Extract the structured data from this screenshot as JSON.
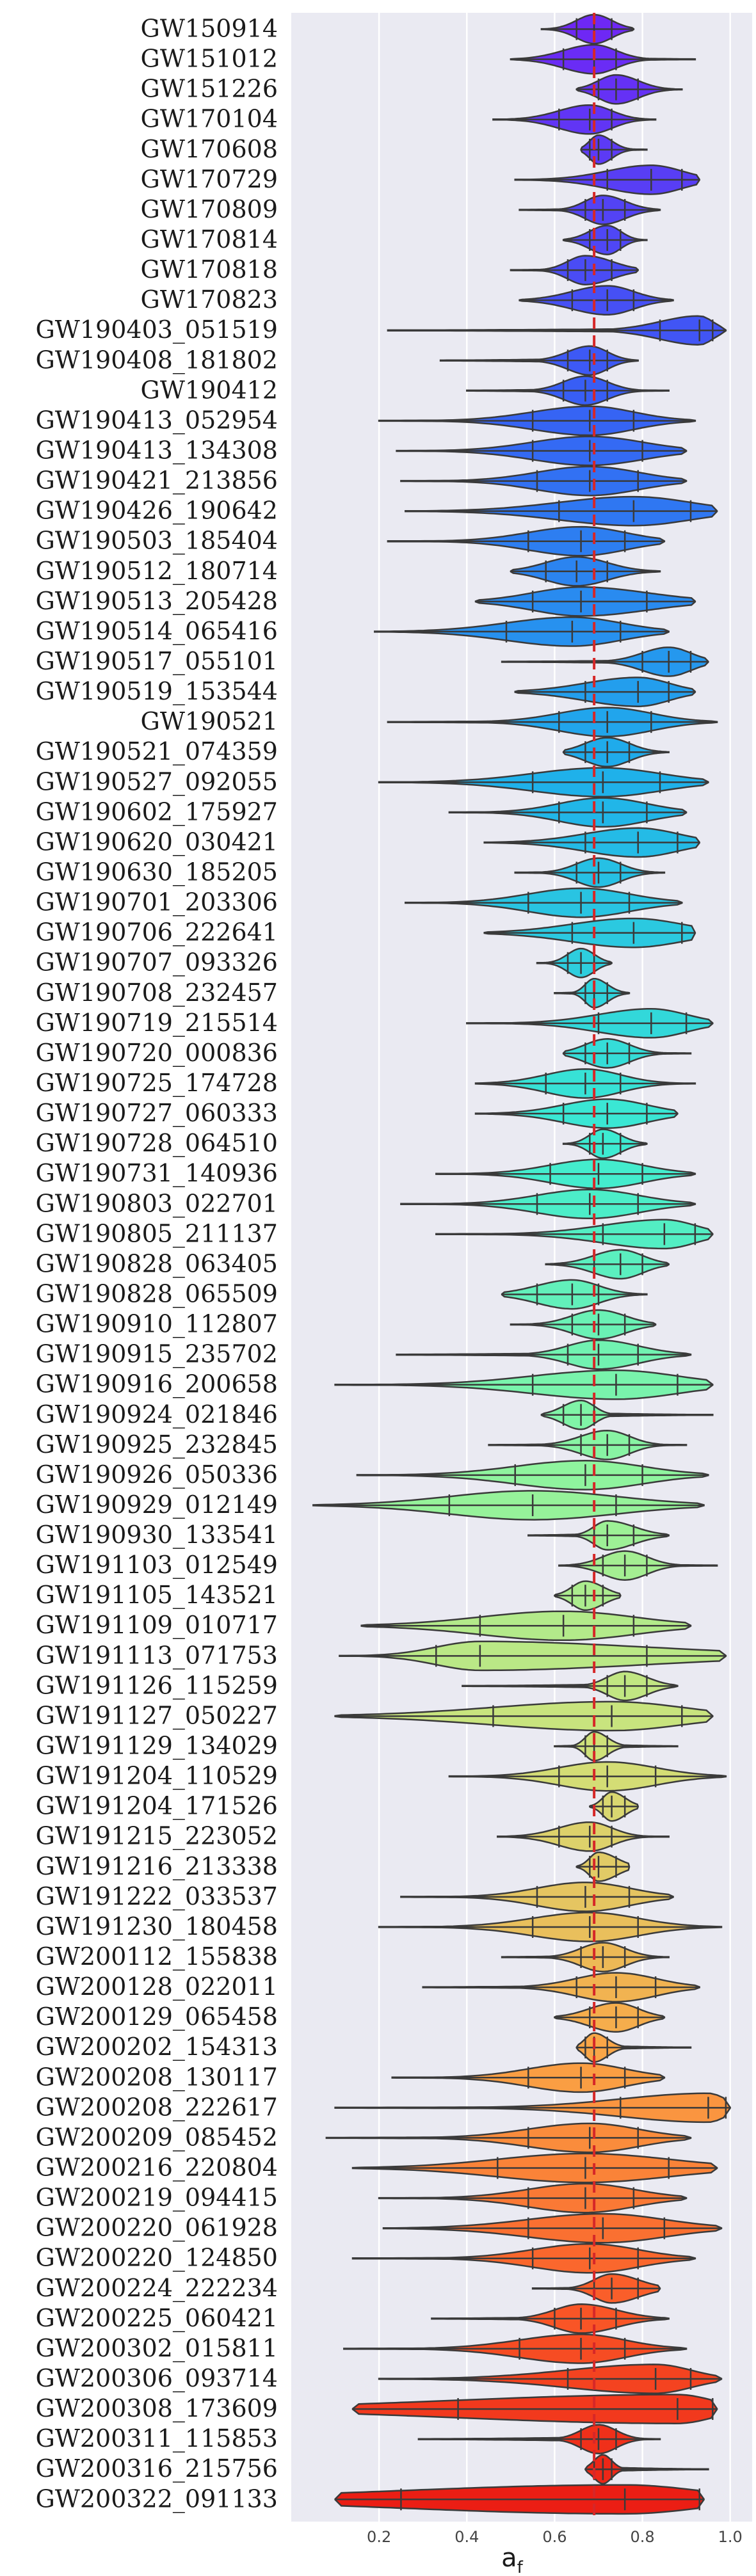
{
  "chart_data": {
    "type": "violin",
    "xlabel": "a_f",
    "xlabel_main": "a",
    "xlabel_sub": "f",
    "xlim": [
      0.0,
      1.05
    ],
    "xticks": [
      0.2,
      0.4,
      0.6,
      0.8,
      1.0
    ],
    "xtick_labels": [
      "0.2",
      "0.4",
      "0.6",
      "0.8",
      "1.0"
    ],
    "grid": true,
    "reference_line": 0.69,
    "events": [
      {
        "name": "GW150914",
        "median": 0.69,
        "lo": 0.65,
        "hi": 0.73,
        "min": 0.57,
        "max": 0.78
      },
      {
        "name": "GW151012",
        "median": 0.69,
        "lo": 0.62,
        "hi": 0.74,
        "min": 0.5,
        "max": 0.92
      },
      {
        "name": "GW151226",
        "median": 0.74,
        "lo": 0.7,
        "hi": 0.79,
        "min": 0.65,
        "max": 0.89
      },
      {
        "name": "GW170104",
        "median": 0.68,
        "lo": 0.61,
        "hi": 0.73,
        "min": 0.46,
        "max": 0.83
      },
      {
        "name": "GW170608",
        "median": 0.7,
        "lo": 0.68,
        "hi": 0.73,
        "min": 0.66,
        "max": 0.81
      },
      {
        "name": "GW170729",
        "median": 0.82,
        "lo": 0.72,
        "hi": 0.89,
        "min": 0.51,
        "max": 0.93
      },
      {
        "name": "GW170809",
        "median": 0.71,
        "lo": 0.67,
        "hi": 0.76,
        "min": 0.52,
        "max": 0.84
      },
      {
        "name": "GW170814",
        "median": 0.72,
        "lo": 0.68,
        "hi": 0.75,
        "min": 0.62,
        "max": 0.81
      },
      {
        "name": "GW170818",
        "median": 0.67,
        "lo": 0.63,
        "hi": 0.73,
        "min": 0.5,
        "max": 0.79
      },
      {
        "name": "GW170823",
        "median": 0.72,
        "lo": 0.64,
        "hi": 0.78,
        "min": 0.52,
        "max": 0.87
      },
      {
        "name": "GW190403_051519",
        "median": 0.93,
        "lo": 0.84,
        "hi": 0.96,
        "min": 0.22,
        "max": 0.99
      },
      {
        "name": "GW190408_181802",
        "median": 0.68,
        "lo": 0.63,
        "hi": 0.72,
        "min": 0.34,
        "max": 0.79
      },
      {
        "name": "GW190412",
        "median": 0.67,
        "lo": 0.62,
        "hi": 0.72,
        "min": 0.4,
        "max": 0.86
      },
      {
        "name": "GW190413_052954",
        "median": 0.68,
        "lo": 0.55,
        "hi": 0.78,
        "min": 0.2,
        "max": 0.92
      },
      {
        "name": "GW190413_134308",
        "median": 0.68,
        "lo": 0.55,
        "hi": 0.8,
        "min": 0.24,
        "max": 0.9
      },
      {
        "name": "GW190421_213856",
        "median": 0.68,
        "lo": 0.56,
        "hi": 0.79,
        "min": 0.25,
        "max": 0.9
      },
      {
        "name": "GW190426_190642",
        "median": 0.78,
        "lo": 0.61,
        "hi": 0.91,
        "min": 0.26,
        "max": 0.97
      },
      {
        "name": "GW190503_185404",
        "median": 0.66,
        "lo": 0.54,
        "hi": 0.76,
        "min": 0.22,
        "max": 0.85
      },
      {
        "name": "GW190512_180714",
        "median": 0.65,
        "lo": 0.58,
        "hi": 0.72,
        "min": 0.5,
        "max": 0.84
      },
      {
        "name": "GW190513_205428",
        "median": 0.66,
        "lo": 0.55,
        "hi": 0.81,
        "min": 0.42,
        "max": 0.92
      },
      {
        "name": "GW190514_065416",
        "median": 0.64,
        "lo": 0.49,
        "hi": 0.75,
        "min": 0.19,
        "max": 0.86
      },
      {
        "name": "GW190517_055101",
        "median": 0.86,
        "lo": 0.8,
        "hi": 0.91,
        "min": 0.48,
        "max": 0.95
      },
      {
        "name": "GW190519_153544",
        "median": 0.79,
        "lo": 0.67,
        "hi": 0.86,
        "min": 0.51,
        "max": 0.92
      },
      {
        "name": "GW190521",
        "median": 0.72,
        "lo": 0.61,
        "hi": 0.82,
        "min": 0.22,
        "max": 0.97
      },
      {
        "name": "GW190521_074359",
        "median": 0.72,
        "lo": 0.67,
        "hi": 0.77,
        "min": 0.62,
        "max": 0.86
      },
      {
        "name": "GW190527_092055",
        "median": 0.71,
        "lo": 0.55,
        "hi": 0.84,
        "min": 0.2,
        "max": 0.95
      },
      {
        "name": "GW190602_175927",
        "median": 0.71,
        "lo": 0.61,
        "hi": 0.81,
        "min": 0.36,
        "max": 0.9
      },
      {
        "name": "GW190620_030421",
        "median": 0.79,
        "lo": 0.67,
        "hi": 0.88,
        "min": 0.44,
        "max": 0.93
      },
      {
        "name": "GW190630_185205",
        "median": 0.7,
        "lo": 0.65,
        "hi": 0.75,
        "min": 0.51,
        "max": 0.85
      },
      {
        "name": "GW190701_203306",
        "median": 0.66,
        "lo": 0.54,
        "hi": 0.77,
        "min": 0.26,
        "max": 0.89
      },
      {
        "name": "GW190706_222641",
        "median": 0.78,
        "lo": 0.64,
        "hi": 0.89,
        "min": 0.44,
        "max": 0.92
      },
      {
        "name": "GW190707_093326",
        "median": 0.66,
        "lo": 0.63,
        "hi": 0.69,
        "min": 0.56,
        "max": 0.73
      },
      {
        "name": "GW190708_232457",
        "median": 0.69,
        "lo": 0.67,
        "hi": 0.72,
        "min": 0.6,
        "max": 0.77
      },
      {
        "name": "GW190719_215514",
        "median": 0.82,
        "lo": 0.7,
        "hi": 0.9,
        "min": 0.4,
        "max": 0.96
      },
      {
        "name": "GW190720_000836",
        "median": 0.72,
        "lo": 0.67,
        "hi": 0.77,
        "min": 0.62,
        "max": 0.91
      },
      {
        "name": "GW190725_174728",
        "median": 0.67,
        "lo": 0.58,
        "hi": 0.75,
        "min": 0.42,
        "max": 0.92
      },
      {
        "name": "GW190727_060333",
        "median": 0.72,
        "lo": 0.62,
        "hi": 0.81,
        "min": 0.42,
        "max": 0.88
      },
      {
        "name": "GW190728_064510",
        "median": 0.71,
        "lo": 0.68,
        "hi": 0.75,
        "min": 0.62,
        "max": 0.81
      },
      {
        "name": "GW190731_140936",
        "median": 0.7,
        "lo": 0.59,
        "hi": 0.8,
        "min": 0.33,
        "max": 0.92
      },
      {
        "name": "GW190803_022701",
        "median": 0.68,
        "lo": 0.56,
        "hi": 0.79,
        "min": 0.25,
        "max": 0.92
      },
      {
        "name": "GW190805_211137",
        "median": 0.85,
        "lo": 0.71,
        "hi": 0.92,
        "min": 0.33,
        "max": 0.96
      },
      {
        "name": "GW190828_063405",
        "median": 0.75,
        "lo": 0.69,
        "hi": 0.8,
        "min": 0.58,
        "max": 0.86
      },
      {
        "name": "GW190828_065509",
        "median": 0.64,
        "lo": 0.56,
        "hi": 0.7,
        "min": 0.48,
        "max": 0.81
      },
      {
        "name": "GW190910_112807",
        "median": 0.7,
        "lo": 0.64,
        "hi": 0.76,
        "min": 0.5,
        "max": 0.83
      },
      {
        "name": "GW190915_235702",
        "median": 0.7,
        "lo": 0.63,
        "hi": 0.79,
        "min": 0.24,
        "max": 0.91
      },
      {
        "name": "GW190916_200658",
        "median": 0.74,
        "lo": 0.55,
        "hi": 0.88,
        "min": 0.1,
        "max": 0.96
      },
      {
        "name": "GW190924_021846",
        "median": 0.66,
        "lo": 0.62,
        "hi": 0.69,
        "min": 0.57,
        "max": 0.96
      },
      {
        "name": "GW190925_232845",
        "median": 0.72,
        "lo": 0.66,
        "hi": 0.77,
        "min": 0.45,
        "max": 0.9
      },
      {
        "name": "GW190926_050336",
        "median": 0.67,
        "lo": 0.51,
        "hi": 0.8,
        "min": 0.15,
        "max": 0.95
      },
      {
        "name": "GW190929_012149",
        "median": 0.55,
        "lo": 0.36,
        "hi": 0.74,
        "min": 0.05,
        "max": 0.94
      },
      {
        "name": "GW190930_133541",
        "median": 0.72,
        "lo": 0.69,
        "hi": 0.78,
        "min": 0.54,
        "max": 0.86
      },
      {
        "name": "GW191103_012549",
        "median": 0.76,
        "lo": 0.71,
        "hi": 0.81,
        "min": 0.61,
        "max": 0.97
      },
      {
        "name": "GW191105_143521",
        "median": 0.67,
        "lo": 0.64,
        "hi": 0.71,
        "min": 0.6,
        "max": 0.75
      },
      {
        "name": "GW191109_010717",
        "median": 0.62,
        "lo": 0.43,
        "hi": 0.78,
        "min": 0.16,
        "max": 0.91
      },
      {
        "name": "GW191113_071753",
        "median": 0.43,
        "lo": 0.33,
        "hi": 0.81,
        "min": 0.11,
        "max": 0.99
      },
      {
        "name": "GW191126_115259",
        "median": 0.76,
        "lo": 0.72,
        "hi": 0.81,
        "min": 0.39,
        "max": 0.88
      },
      {
        "name": "GW191127_050227",
        "median": 0.73,
        "lo": 0.46,
        "hi": 0.89,
        "min": 0.1,
        "max": 0.96
      },
      {
        "name": "GW191129_134029",
        "median": 0.69,
        "lo": 0.67,
        "hi": 0.72,
        "min": 0.6,
        "max": 0.88
      },
      {
        "name": "GW191204_110529",
        "median": 0.72,
        "lo": 0.61,
        "hi": 0.83,
        "min": 0.36,
        "max": 0.99
      },
      {
        "name": "GW191204_171526",
        "median": 0.73,
        "lo": 0.71,
        "hi": 0.76,
        "min": 0.68,
        "max": 0.79
      },
      {
        "name": "GW191215_223052",
        "median": 0.68,
        "lo": 0.61,
        "hi": 0.73,
        "min": 0.47,
        "max": 0.86
      },
      {
        "name": "GW191216_213338",
        "median": 0.7,
        "lo": 0.68,
        "hi": 0.74,
        "min": 0.65,
        "max": 0.77
      },
      {
        "name": "GW191222_033537",
        "median": 0.67,
        "lo": 0.56,
        "hi": 0.77,
        "min": 0.25,
        "max": 0.87
      },
      {
        "name": "GW191230_180458",
        "median": 0.68,
        "lo": 0.55,
        "hi": 0.79,
        "min": 0.2,
        "max": 0.98
      },
      {
        "name": "GW200112_155838",
        "median": 0.71,
        "lo": 0.66,
        "hi": 0.76,
        "min": 0.48,
        "max": 0.86
      },
      {
        "name": "GW200128_022011",
        "median": 0.74,
        "lo": 0.65,
        "hi": 0.83,
        "min": 0.3,
        "max": 0.93
      },
      {
        "name": "GW200129_065458",
        "median": 0.74,
        "lo": 0.68,
        "hi": 0.79,
        "min": 0.6,
        "max": 0.85
      },
      {
        "name": "GW200202_154313",
        "median": 0.69,
        "lo": 0.67,
        "hi": 0.72,
        "min": 0.65,
        "max": 0.91
      },
      {
        "name": "GW200208_130117",
        "median": 0.66,
        "lo": 0.54,
        "hi": 0.76,
        "min": 0.23,
        "max": 0.85
      },
      {
        "name": "GW200208_222617",
        "median": 0.95,
        "lo": 0.75,
        "hi": 0.99,
        "min": 0.1,
        "max": 1.0
      },
      {
        "name": "GW200209_085452",
        "median": 0.68,
        "lo": 0.54,
        "hi": 0.79,
        "min": 0.08,
        "max": 0.91
      },
      {
        "name": "GW200216_220804",
        "median": 0.67,
        "lo": 0.47,
        "hi": 0.86,
        "min": 0.14,
        "max": 0.97
      },
      {
        "name": "GW200219_094415",
        "median": 0.67,
        "lo": 0.54,
        "hi": 0.78,
        "min": 0.2,
        "max": 0.9
      },
      {
        "name": "GW200220_061928",
        "median": 0.71,
        "lo": 0.54,
        "hi": 0.85,
        "min": 0.21,
        "max": 0.98
      },
      {
        "name": "GW200220_124850",
        "median": 0.68,
        "lo": 0.55,
        "hi": 0.79,
        "min": 0.14,
        "max": 0.92
      },
      {
        "name": "GW200224_222234",
        "median": 0.73,
        "lo": 0.69,
        "hi": 0.79,
        "min": 0.55,
        "max": 0.84
      },
      {
        "name": "GW200225_060421",
        "median": 0.66,
        "lo": 0.6,
        "hi": 0.74,
        "min": 0.32,
        "max": 0.86
      },
      {
        "name": "GW200302_015811",
        "median": 0.66,
        "lo": 0.52,
        "hi": 0.76,
        "min": 0.12,
        "max": 0.9
      },
      {
        "name": "GW200306_093714",
        "median": 0.83,
        "lo": 0.63,
        "hi": 0.91,
        "min": 0.2,
        "max": 0.98
      },
      {
        "name": "GW200308_173609",
        "median": 0.88,
        "lo": 0.38,
        "hi": 0.96,
        "min": 0.14,
        "max": 0.97
      },
      {
        "name": "GW200311_115853",
        "median": 0.7,
        "lo": 0.66,
        "hi": 0.74,
        "min": 0.29,
        "max": 0.84
      },
      {
        "name": "GW200316_215756",
        "median": 0.71,
        "lo": 0.69,
        "hi": 0.73,
        "min": 0.67,
        "max": 0.95
      },
      {
        "name": "GW200322_091133",
        "median": 0.76,
        "lo": 0.25,
        "hi": 0.93,
        "min": 0.1,
        "max": 0.94
      }
    ]
  }
}
